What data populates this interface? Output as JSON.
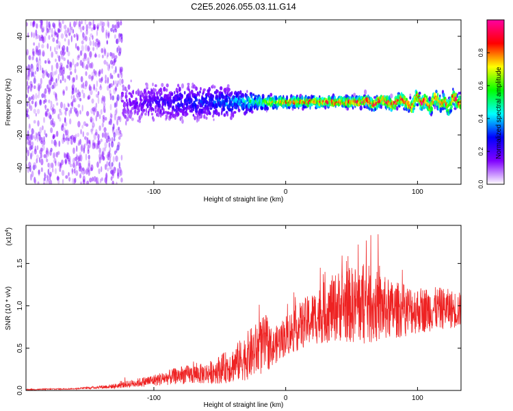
{
  "title": "C2E5.2026.055.03.11.G14",
  "chart_data": [
    {
      "type": "heatmap",
      "name": "spectrogram",
      "xlabel": "Height of straight line (km)",
      "ylabel": "Frequency (Hz)",
      "xlim": [
        -197,
        133
      ],
      "ylim": [
        -50,
        50
      ],
      "xticks": [
        -100,
        0,
        100
      ],
      "xtick_labels": [
        "-100",
        "0",
        "100"
      ],
      "yticks": [
        -40,
        -20,
        0,
        20,
        40
      ],
      "ytick_labels": [
        "-40",
        "-20",
        "0",
        "20",
        "40"
      ],
      "colorbar": {
        "label": "Normalized spectral amplitude",
        "range": [
          0,
          1
        ],
        "ticks": [
          0.0,
          0.2,
          0.4,
          0.6,
          0.8
        ],
        "tick_labels": [
          "0.0",
          "0.2",
          "0.4",
          "0.6",
          "0.8"
        ],
        "colors": [
          "#ffffff",
          "#8000ff",
          "#0000ff",
          "#00ffff",
          "#00ff00",
          "#ffff00",
          "#ff0000",
          "#ff00a0"
        ]
      },
      "description_points": [
        {
          "x": -190,
          "spread_hz": 50,
          "amp": 0.12
        },
        {
          "x": -140,
          "spread_hz": 50,
          "amp": 0.1
        },
        {
          "x": -120,
          "spread_hz": 12,
          "amp": 0.15
        },
        {
          "x": -80,
          "spread_hz": 10,
          "amp": 0.25
        },
        {
          "x": -40,
          "spread_hz": 8,
          "amp": 0.35
        },
        {
          "x": -20,
          "spread_hz": 4,
          "amp": 0.55
        },
        {
          "x": 0,
          "spread_hz": 3,
          "amp": 0.75
        },
        {
          "x": 50,
          "spread_hz": 3,
          "amp": 0.85
        },
        {
          "x": 100,
          "spread_hz": 4,
          "amp": 0.85
        },
        {
          "x": 130,
          "spread_hz": 5,
          "amp": 0.8
        }
      ]
    },
    {
      "type": "line",
      "name": "snr",
      "xlabel": "Height of straight line (km)",
      "ylabel": "SNR (10 * v/v)",
      "y_multiplier_label": "(x10",
      "y_multiplier_exp": "4",
      "y_multiplier_close": ")",
      "xlim": [
        -197,
        133
      ],
      "ylim": [
        0,
        1.95
      ],
      "xticks": [
        -100,
        0,
        100
      ],
      "xtick_labels": [
        "-100",
        "0",
        "100"
      ],
      "yticks": [
        0.0,
        0.5,
        1.0,
        1.5
      ],
      "ytick_labels": [
        "0.0",
        "0.5",
        "1.0",
        "1.5"
      ],
      "color": "#ee2222",
      "envelope": {
        "x": [
          -197,
          -160,
          -130,
          -100,
          -80,
          -60,
          -40,
          -25,
          -15,
          -10,
          0,
          20,
          40,
          60,
          80,
          100,
          120,
          133
        ],
        "mean": [
          0.01,
          0.02,
          0.05,
          0.12,
          0.18,
          0.2,
          0.3,
          0.45,
          0.55,
          0.5,
          0.65,
          0.85,
          1.0,
          1.02,
          0.95,
          0.95,
          0.97,
          0.95
        ],
        "amplitude": [
          0.01,
          0.01,
          0.04,
          0.1,
          0.15,
          0.18,
          0.3,
          0.45,
          0.5,
          0.3,
          0.35,
          0.45,
          0.6,
          0.7,
          0.5,
          0.4,
          0.35,
          0.3
        ]
      }
    }
  ]
}
